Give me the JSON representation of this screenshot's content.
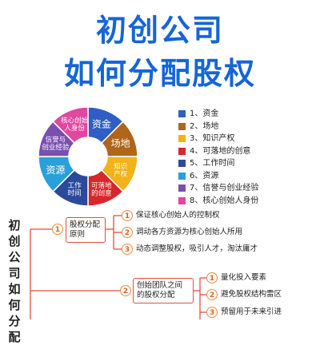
{
  "title": {
    "line1": "初创公司",
    "line2": "如何分配股权"
  },
  "wheel": {
    "center_color": "#ffffff",
    "segments": [
      {
        "label": "资金",
        "color": "#2f5fc4"
      },
      {
        "label": "场地",
        "color": "#b0651b"
      },
      {
        "label": "知识\n产权",
        "color": "#f2b21a"
      },
      {
        "label": "可落地\n的创意",
        "color": "#d9262a"
      },
      {
        "label": "工作\n时间",
        "color": "#2c4a9c"
      },
      {
        "label": "资源",
        "color": "#2aa0d8"
      },
      {
        "label": "信誉与\n创业经验",
        "color": "#7b4fb0"
      },
      {
        "label": "核心创始\n人身份",
        "color": "#e048a0"
      }
    ]
  },
  "legend": [
    {
      "text": "1、资金",
      "color": "#2f5fc4"
    },
    {
      "text": "2、场地",
      "color": "#b0651b"
    },
    {
      "text": "3、知识产权",
      "color": "#f2b21a"
    },
    {
      "text": "4、可落地的创意",
      "color": "#d9262a"
    },
    {
      "text": "5、工作时间",
      "color": "#2c4a9c"
    },
    {
      "text": "6、资源",
      "color": "#2aa0d8"
    },
    {
      "text": "7、信誉与创业经验",
      "color": "#7b4fb0"
    },
    {
      "text": "8、核心创始人身份",
      "color": "#e048a0"
    }
  ],
  "mindmap": {
    "vertical_title": "初创公司如何分配",
    "branch1": {
      "number": "1",
      "label": "股权分配原则",
      "items": [
        {
          "number": "1",
          "text": "保证核心创始人的控制权"
        },
        {
          "number": "2",
          "text": "调动各方资源为核心创始人所用"
        },
        {
          "number": "3",
          "text": "动态调整股权，吸引人才，淘汰庸才"
        }
      ]
    },
    "branch2": {
      "number": "2",
      "label": "创始团队之间的股权分配",
      "items": [
        {
          "number": "1",
          "text": "量化投入要素"
        },
        {
          "number": "2",
          "text": "避免股权结构雷区"
        },
        {
          "number": "3",
          "text": "预留用于未来引进"
        }
      ]
    }
  }
}
